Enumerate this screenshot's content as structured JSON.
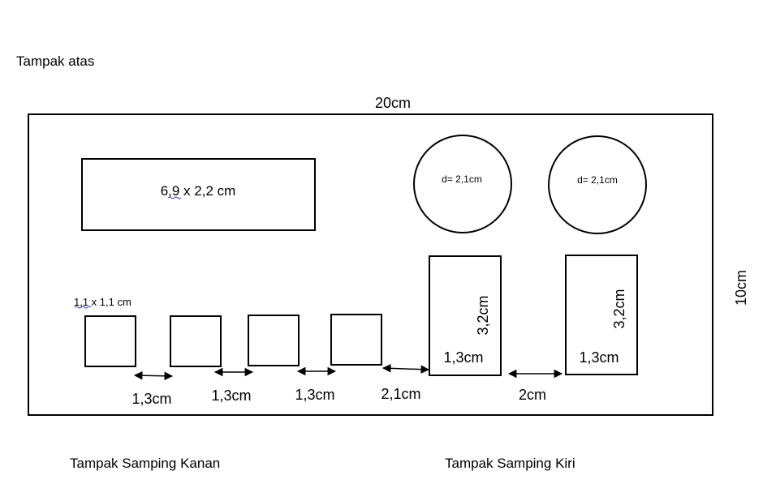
{
  "labels": {
    "top_view": "Tampak atas",
    "width": "20cm",
    "height": "10cm",
    "right_side_view": "Tampak Samping Kanan",
    "left_side_view": "Tampak Samping Kiri"
  },
  "rectangle": {
    "label": "6,9 x 2,2 cm"
  },
  "circles": [
    {
      "label": "d= 2,1cm"
    },
    {
      "label": "d= 2,1cm"
    }
  ],
  "small_square": {
    "label": "1,1 x 1,1 cm"
  },
  "tall_rects": [
    {
      "height_label": "3,2cm",
      "width_label": "1,3cm"
    },
    {
      "height_label": "3,2cm",
      "width_label": "1,3cm"
    }
  ],
  "gaps": [
    "1,3cm",
    "1,3cm",
    "1,3cm",
    "2,1cm",
    "2cm"
  ],
  "colors": {
    "stroke": "#000000",
    "spellcheck_underline": "#2b3fb8"
  }
}
